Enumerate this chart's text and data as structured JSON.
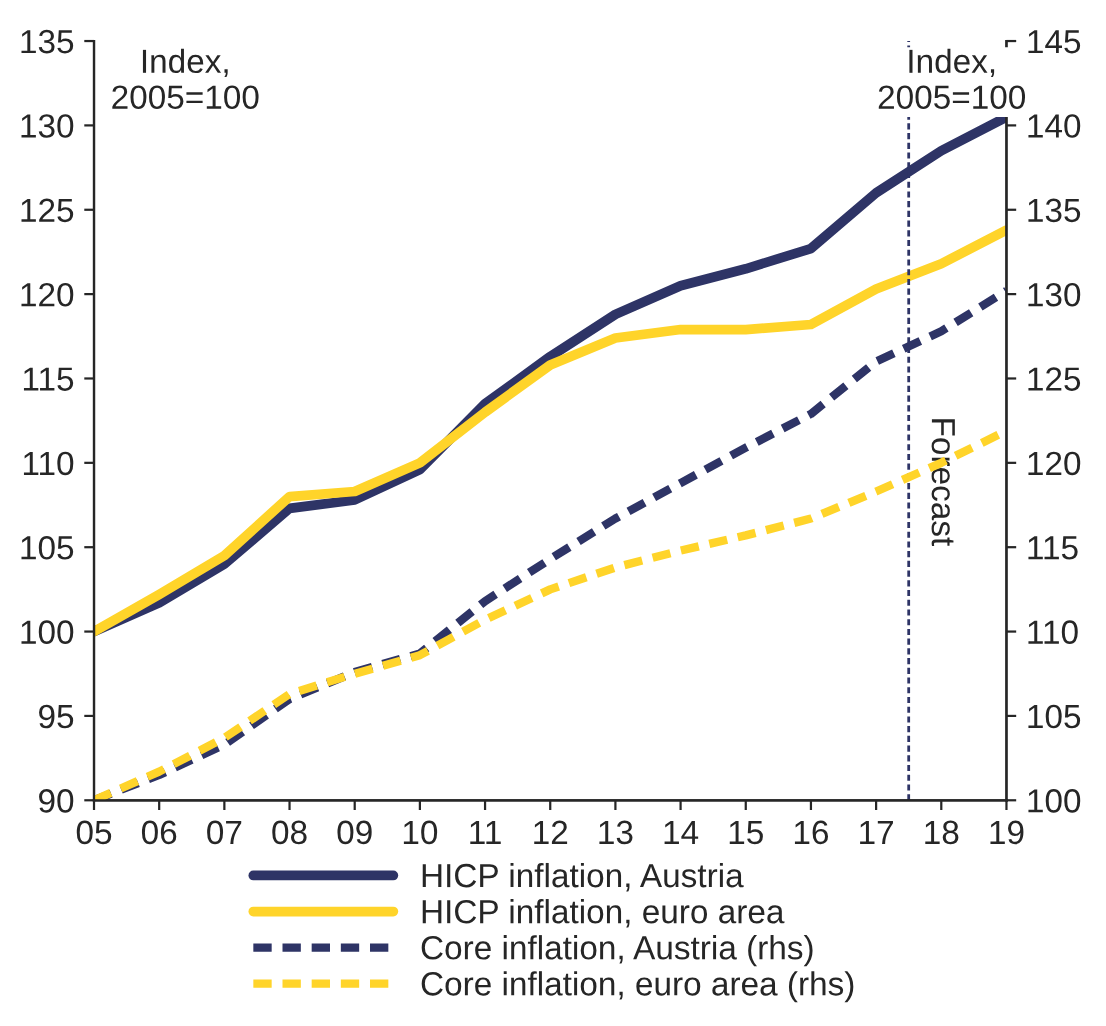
{
  "chart_data": {
    "type": "line",
    "ylabel": "Index,\n2005=100",
    "y2label": "Index,\n2005=100",
    "x": [
      2005,
      2006,
      2007,
      2008,
      2009,
      2010,
      2011,
      2012,
      2013,
      2014,
      2015,
      2016,
      2017,
      2018,
      2019
    ],
    "xlim": [
      2005,
      2019
    ],
    "xticks": [
      {
        "value": 2005,
        "label": "05"
      },
      {
        "value": 2006,
        "label": "06"
      },
      {
        "value": 2007,
        "label": "07"
      },
      {
        "value": 2008,
        "label": "08"
      },
      {
        "value": 2009,
        "label": "09"
      },
      {
        "value": 2010,
        "label": "10"
      },
      {
        "value": 2011,
        "label": "11"
      },
      {
        "value": 2012,
        "label": "12"
      },
      {
        "value": 2013,
        "label": "13"
      },
      {
        "value": 2014,
        "label": "14"
      },
      {
        "value": 2015,
        "label": "15"
      },
      {
        "value": 2016,
        "label": "16"
      },
      {
        "value": 2017,
        "label": "17"
      },
      {
        "value": 2018,
        "label": "18"
      },
      {
        "value": 2019,
        "label": "19"
      }
    ],
    "ylim": [
      90,
      135
    ],
    "yticks": [
      90,
      95,
      100,
      105,
      110,
      115,
      120,
      125,
      130,
      135
    ],
    "y2lim": [
      100,
      145
    ],
    "y2ticks": [
      100,
      105,
      110,
      115,
      120,
      125,
      130,
      135,
      140,
      145
    ],
    "series": [
      {
        "name": "HICP inflation, Austria",
        "color": "#2e3466",
        "line_style": "solid",
        "values": [
          100,
          101.7,
          104,
          107.3,
          107.8,
          109.6,
          113.5,
          116.3,
          118.8,
          120.5,
          121.5,
          122.7,
          126,
          128.5,
          130.5
        ]
      },
      {
        "name": "HICP inflation, euro area",
        "color": "#ffd42a",
        "line_style": "solid",
        "values": [
          100,
          102.2,
          104.5,
          108,
          108.3,
          110,
          113,
          115.8,
          117.4,
          117.9,
          117.9,
          118.2,
          120.3,
          121.8,
          123.8
        ]
      },
      {
        "name": "Core inflation, Austria (rhs)",
        "color": "#2e3466",
        "line_style": "dashed",
        "axis": "y2",
        "values": [
          100,
          101.5,
          103.3,
          106,
          107.6,
          108.7,
          111.8,
          114.3,
          116.7,
          118.8,
          120.9,
          122.9,
          126,
          127.8,
          130.2
        ]
      },
      {
        "name": "Core inflation, euro area (rhs)",
        "color": "#ffd42a",
        "line_style": "dashed",
        "axis": "y2",
        "values": [
          100,
          101.7,
          103.7,
          106.3,
          107.5,
          108.6,
          110.7,
          112.5,
          113.8,
          114.8,
          115.7,
          116.7,
          118.3,
          120,
          121.9
        ]
      }
    ],
    "ref_lines": [
      {
        "axis": "x",
        "value": 2017.5,
        "label": "Forecast",
        "color": "#2e3466",
        "line_style": "dashed"
      }
    ],
    "grid": false,
    "legend": "bottom",
    "marker": "none"
  }
}
